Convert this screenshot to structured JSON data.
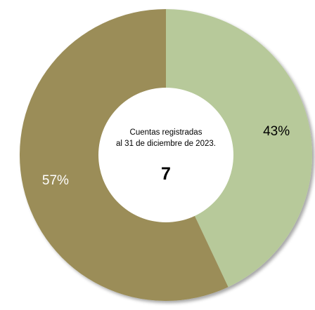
{
  "chart_data": {
    "type": "pie",
    "variant": "donut",
    "center_text": [
      "Cuentas registradas",
      "al 31 de diciembre de 2023."
    ],
    "center_value": "7",
    "start": "top",
    "direction": "clockwise",
    "slices": [
      {
        "label": "43%",
        "value": 43,
        "color": "#b7c99a",
        "label_color": "#000000"
      },
      {
        "label": "57%",
        "value": 57,
        "color": "#9b8d58",
        "label_color": "#ffffff"
      }
    ]
  }
}
